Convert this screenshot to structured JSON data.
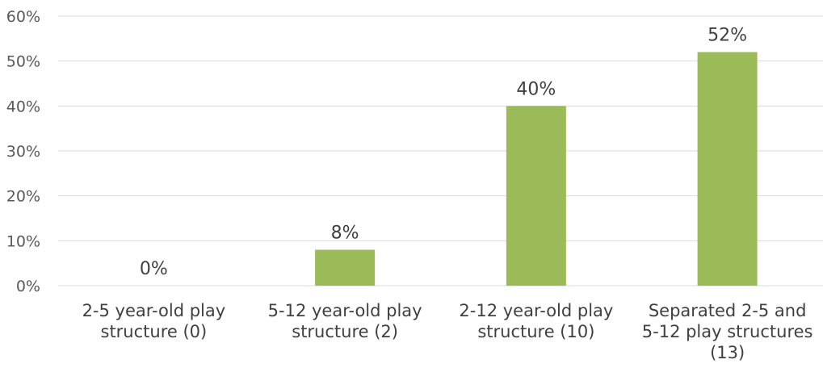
{
  "chart_data": {
    "type": "bar",
    "categories": [
      [
        "2-5 year-old play",
        "structure (0)"
      ],
      [
        "5-12 year-old play",
        "structure (2)"
      ],
      [
        "2-12 year-old play",
        "structure (10)"
      ],
      [
        "Separated 2-5 and",
        "5-12 play structures",
        "(13)"
      ]
    ],
    "values": [
      0,
      8,
      40,
      52
    ],
    "data_labels": [
      "0%",
      "8%",
      "40%",
      "52%"
    ],
    "yticks": [
      "0%",
      "10%",
      "20%",
      "30%",
      "40%",
      "50%",
      "60%"
    ],
    "ylim": [
      0,
      60
    ],
    "grid": true,
    "legend": "none",
    "bar_color": "#9bbb59",
    "grid_color": "#d9d9d9"
  }
}
